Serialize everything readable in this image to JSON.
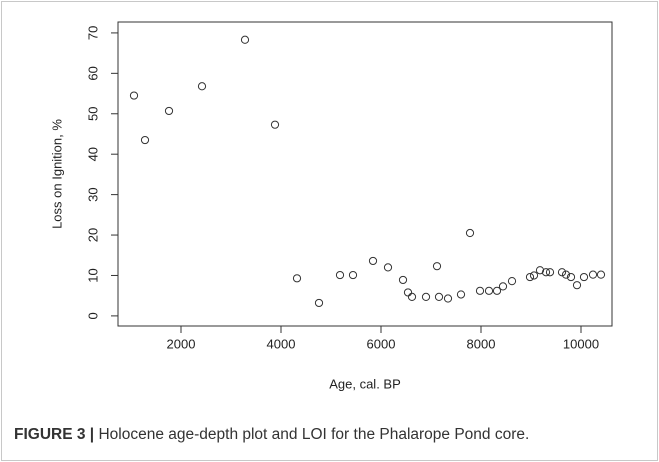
{
  "chart_data": {
    "type": "scatter",
    "xlabel": "Age, cal. BP",
    "ylabel": "Loss on Ignition, %",
    "x": [
      1060,
      1280,
      1760,
      2420,
      3280,
      3880,
      4320,
      4760,
      5180,
      5440,
      5840,
      6140,
      6440,
      6540,
      6620,
      6900,
      7120,
      7160,
      7340,
      7600,
      7780,
      7980,
      8160,
      8320,
      8440,
      8620,
      8980,
      9060,
      9180,
      9300,
      9380,
      9620,
      9700,
      9800,
      9920,
      10060,
      10240,
      10400
    ],
    "y": [
      54.5,
      43.5,
      50.7,
      56.8,
      68.3,
      47.3,
      9.3,
      3.2,
      10.1,
      10.1,
      13.6,
      12.0,
      8.9,
      5.8,
      4.7,
      4.7,
      12.3,
      4.7,
      4.3,
      5.3,
      20.5,
      6.2,
      6.2,
      6.2,
      7.3,
      8.6,
      9.6,
      10.0,
      11.3,
      10.8,
      10.8,
      10.8,
      10.2,
      9.6,
      7.6,
      9.6,
      10.2,
      10.2
    ],
    "xlim": [
      740,
      10620
    ],
    "ylim": [
      -2.5,
      72.7
    ],
    "xticks": [
      2000,
      4000,
      6000,
      8000,
      10000
    ],
    "yticks": [
      0,
      10,
      20,
      30,
      40,
      50,
      60,
      70
    ],
    "color": "#333333"
  },
  "caption": {
    "label": "FIGURE 3 |",
    "text": "Holocene age-depth plot and LOI for the Phalarope Pond core."
  }
}
